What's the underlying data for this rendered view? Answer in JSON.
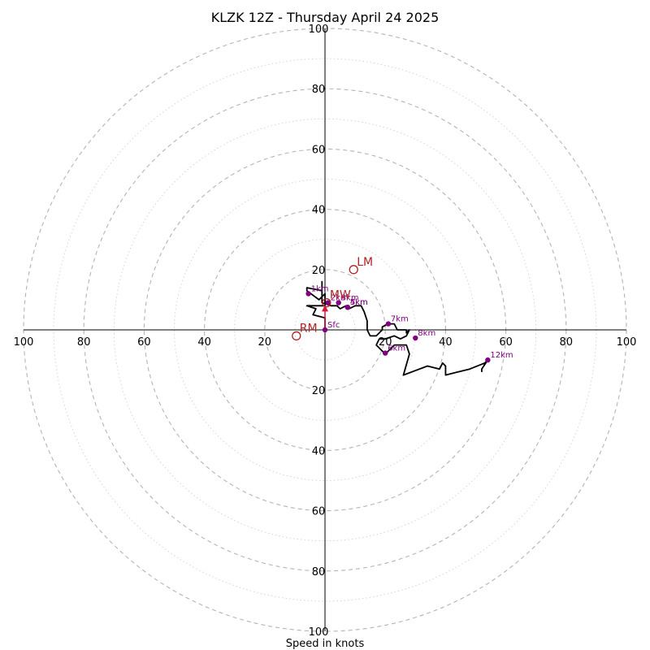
{
  "chart_data": {
    "type": "hodograph",
    "title": "KLZK 12Z - Thursday April 24 2025",
    "xlabel": "Speed in knots",
    "ylabel": "",
    "range": [
      -100,
      100
    ],
    "tick_labels": [
      "100",
      "80",
      "60",
      "40",
      "20",
      "",
      "20",
      "40",
      "60",
      "80",
      "100"
    ],
    "ring_values": [
      10,
      20,
      30,
      40,
      50,
      60,
      70,
      80,
      90,
      100
    ],
    "grid": true,
    "colors": {
      "trace": "#000000",
      "height_marker": "#800080",
      "motion": "#b22222",
      "shear_vector": "#dc143c",
      "ring_major": "#b4b4b4",
      "ring_minor": "#d0d0d0"
    },
    "trace": [
      {
        "x": 0,
        "y": 0
      },
      {
        "x": 0,
        "y": 4
      },
      {
        "x": -4,
        "y": 5
      },
      {
        "x": -3,
        "y": 7
      },
      {
        "x": -6,
        "y": 8
      },
      {
        "x": 0,
        "y": 8
      },
      {
        "x": 0,
        "y": 12
      },
      {
        "x": -2,
        "y": 10
      },
      {
        "x": -6,
        "y": 13
      },
      {
        "x": -6,
        "y": 14
      },
      {
        "x": -1,
        "y": 13
      },
      {
        "x": -1,
        "y": 16
      },
      {
        "x": -1,
        "y": 9
      },
      {
        "x": 2,
        "y": 8
      },
      {
        "x": 4,
        "y": 8
      },
      {
        "x": 5,
        "y": 7
      },
      {
        "x": 7,
        "y": 8
      },
      {
        "x": 8,
        "y": 7
      },
      {
        "x": 10,
        "y": 8
      },
      {
        "x": 12,
        "y": 8
      },
      {
        "x": 13,
        "y": 6
      },
      {
        "x": 14,
        "y": 3
      },
      {
        "x": 14,
        "y": 0
      },
      {
        "x": 15,
        "y": -2
      },
      {
        "x": 17,
        "y": -2
      },
      {
        "x": 19,
        "y": 0
      },
      {
        "x": 19,
        "y": 1
      },
      {
        "x": 21,
        "y": 2
      },
      {
        "x": 23,
        "y": 2
      },
      {
        "x": 24,
        "y": 0
      },
      {
        "x": 27,
        "y": 0
      },
      {
        "x": 27,
        "y": -1
      },
      {
        "x": 28,
        "y": 0
      },
      {
        "x": 27,
        "y": -2
      },
      {
        "x": 25,
        "y": -3
      },
      {
        "x": 23,
        "y": -2
      },
      {
        "x": 20,
        "y": -3
      },
      {
        "x": 18,
        "y": -3
      },
      {
        "x": 17,
        "y": -5
      },
      {
        "x": 20,
        "y": -8
      },
      {
        "x": 23,
        "y": -5
      },
      {
        "x": 25,
        "y": -5
      },
      {
        "x": 27,
        "y": -5
      },
      {
        "x": 28,
        "y": -8
      },
      {
        "x": 26,
        "y": -15
      },
      {
        "x": 34,
        "y": -12
      },
      {
        "x": 38,
        "y": -13
      },
      {
        "x": 39,
        "y": -11
      },
      {
        "x": 40,
        "y": -12
      },
      {
        "x": 40,
        "y": -15
      },
      {
        "x": 44,
        "y": -14
      },
      {
        "x": 48,
        "y": -13
      },
      {
        "x": 53,
        "y": -11
      },
      {
        "x": 54,
        "y": -10
      },
      {
        "x": 52,
        "y": -13
      },
      {
        "x": 52,
        "y": -14
      }
    ],
    "height_markers": [
      {
        "label": "Sfc",
        "x": 0,
        "y": 0
      },
      {
        "label": "1km",
        "x": -5.5,
        "y": 12
      },
      {
        "label": "2km",
        "x": 1,
        "y": 9
      },
      {
        "label": "3km",
        "x": 4.5,
        "y": 9
      },
      {
        "label": "4km",
        "x": 7.5,
        "y": 7.5
      },
      {
        "label": "5km",
        "x": 7.5,
        "y": 7.5
      },
      {
        "label": "6km",
        "x": 20,
        "y": -7.7
      },
      {
        "label": "7km",
        "x": 21,
        "y": 2
      },
      {
        "label": "8km",
        "x": 30,
        "y": -2.7
      },
      {
        "label": "12km",
        "x": 54,
        "y": -10
      }
    ],
    "storm_motion": [
      {
        "label": "LM",
        "x": 9.5,
        "y": 20
      },
      {
        "label": "MW",
        "x": 0.5,
        "y": 9
      },
      {
        "label": "RM",
        "x": -9.5,
        "y": -2
      }
    ],
    "shear_vector": {
      "from": {
        "x": 0,
        "y": 0
      },
      "to": {
        "x": 0,
        "y": 8
      }
    }
  }
}
